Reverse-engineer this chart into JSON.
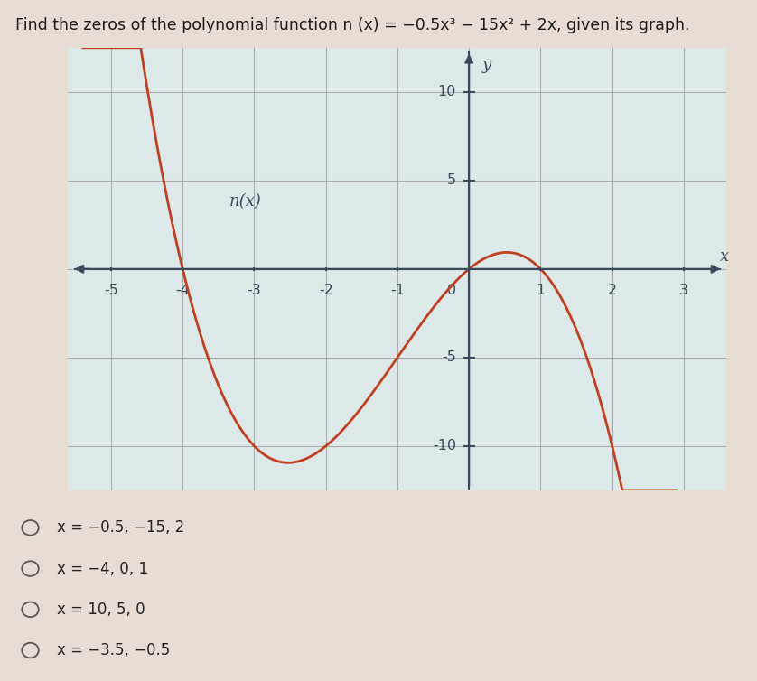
{
  "title_plain": "Find the zeros of the polynomial function n (x) = −0.5x³ − 15x² + 2x, given its graph.",
  "curve_color": "#bf4020",
  "curve_linewidth": 2.0,
  "axis_color": "#3a4a5a",
  "grid_color": "#aaaaaa",
  "bg_color_top": "#e8ddd4",
  "bg_color_plot": "#dde8e8",
  "label_nx": "n(x)",
  "label_x": "x",
  "label_y": "y",
  "xlim": [
    -5.6,
    3.6
  ],
  "ylim": [
    -12.5,
    12.5
  ],
  "xticks": [
    -5,
    -4,
    -3,
    -2,
    -1,
    0,
    1,
    2,
    3
  ],
  "yticks": [
    -10,
    -5,
    5,
    10
  ],
  "choices": [
    "x = −0.5, −15, 2",
    "x = −4, 0, 1",
    "x = 10, 5, 0",
    "x = −3.5, −0.5"
  ]
}
